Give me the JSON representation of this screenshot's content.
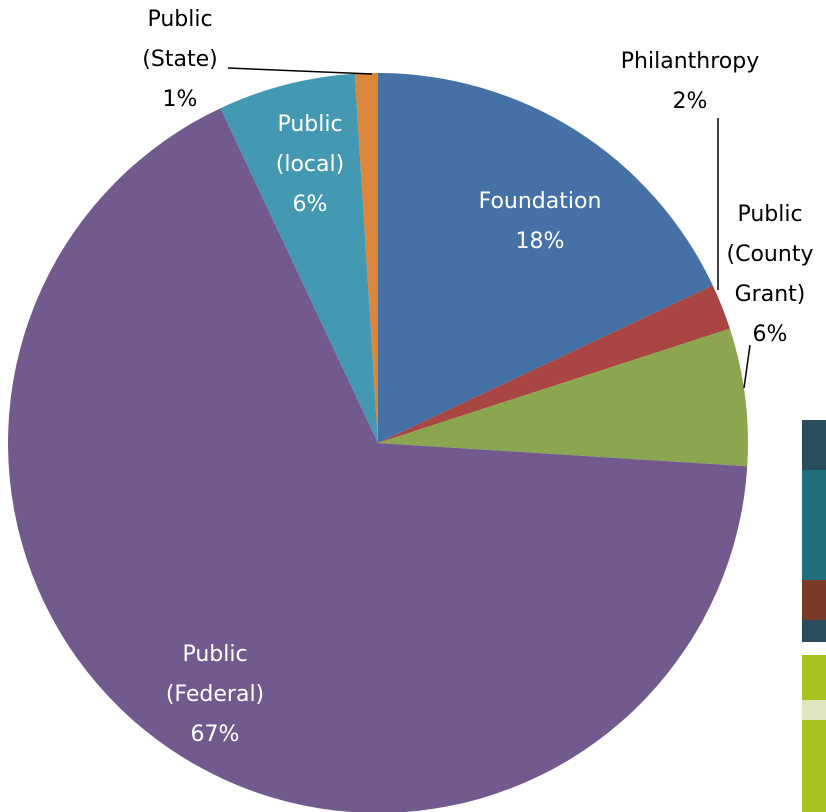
{
  "chart_data": {
    "type": "pie",
    "categories": [
      "Foundation",
      "Philanthropy",
      "Public (County Grant)",
      "Public (Federal)",
      "Public (local)",
      "Public (State)"
    ],
    "values": [
      18,
      2,
      6,
      67,
      6,
      1
    ],
    "value_labels": [
      "18%",
      "2%",
      "6%",
      "67%",
      "6%",
      "1%"
    ],
    "colors": [
      "#4671a6",
      "#a94542",
      "#8ba64f",
      "#725a8e",
      "#4299b1",
      "#db863d"
    ]
  }
}
